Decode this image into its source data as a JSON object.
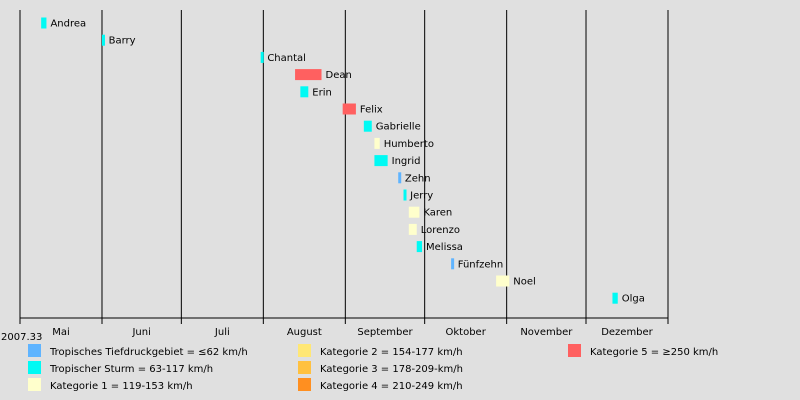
{
  "chart_data": {
    "type": "timeline",
    "start_label": "2007.33",
    "months": [
      "Mai",
      "Juni",
      "Juli",
      "August",
      "September",
      "Oktober",
      "November",
      "Dezember"
    ],
    "xlim": [
      "2007-05-01",
      "2008-01-01"
    ],
    "storms": [
      {
        "name": "Andrea",
        "start": "2007-05-09",
        "end": "2007-05-11",
        "category": "ts"
      },
      {
        "name": "Barry",
        "start": "2007-06-01",
        "end": "2007-06-02",
        "category": "ts"
      },
      {
        "name": "Chantal",
        "start": "2007-07-31",
        "end": "2007-08-01",
        "category": "ts"
      },
      {
        "name": "Dean",
        "start": "2007-08-13",
        "end": "2007-08-23",
        "category": "c5"
      },
      {
        "name": "Erin",
        "start": "2007-08-15",
        "end": "2007-08-18",
        "category": "ts"
      },
      {
        "name": "Felix",
        "start": "2007-08-31",
        "end": "2007-09-05",
        "category": "c5"
      },
      {
        "name": "Gabrielle",
        "start": "2007-09-08",
        "end": "2007-09-11",
        "category": "ts"
      },
      {
        "name": "Humberto",
        "start": "2007-09-12",
        "end": "2007-09-14",
        "category": "c1"
      },
      {
        "name": "Ingrid",
        "start": "2007-09-12",
        "end": "2007-09-17",
        "category": "ts"
      },
      {
        "name": "Zehn",
        "start": "2007-09-21",
        "end": "2007-09-22",
        "category": "td"
      },
      {
        "name": "Jerry",
        "start": "2007-09-23",
        "end": "2007-09-24",
        "category": "ts"
      },
      {
        "name": "Karen",
        "start": "2007-09-25",
        "end": "2007-09-29",
        "category": "c1"
      },
      {
        "name": "Lorenzo",
        "start": "2007-09-25",
        "end": "2007-09-28",
        "category": "c1"
      },
      {
        "name": "Melissa",
        "start": "2007-09-28",
        "end": "2007-09-30",
        "category": "ts"
      },
      {
        "name": "Fünfzehn",
        "start": "2007-10-11",
        "end": "2007-10-12",
        "category": "td"
      },
      {
        "name": "Noel",
        "start": "2007-10-28",
        "end": "2007-11-02",
        "category": "c1"
      },
      {
        "name": "Olga",
        "start": "2007-12-11",
        "end": "2007-12-13",
        "category": "ts"
      }
    ],
    "legend": [
      {
        "key": "td",
        "label": "Tropisches Tiefdruckgebiet = ≤62 km/h",
        "color": "#5fb4ff"
      },
      {
        "key": "ts",
        "label": "Tropischer Sturm = 63-117 km/h",
        "color": "#00faf4"
      },
      {
        "key": "c1",
        "label": "Kategorie 1 = 119-153 km/h",
        "color": "#ffffcc"
      },
      {
        "key": "c2",
        "label": "Kategorie 2 = 154-177 km/h",
        "color": "#ffe775"
      },
      {
        "key": "c3",
        "label": "Kategorie 3 = 178-209-km/h",
        "color": "#ffc140"
      },
      {
        "key": "c4",
        "label": "Kategorie 4 = 210-249 km/h",
        "color": "#ff8f20"
      },
      {
        "key": "c5",
        "label": "Kategorie 5 = ≥250 km/h",
        "color": "#ff6060"
      }
    ]
  }
}
